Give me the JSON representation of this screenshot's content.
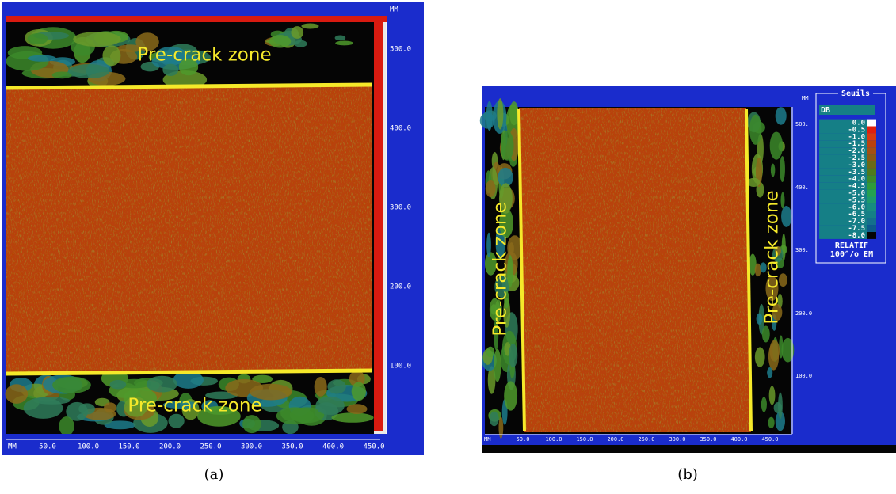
{
  "panel_a": {
    "y_axis_unit": "MM",
    "y_axis_labels": [
      "500.0",
      "400.0",
      "300.0",
      "200.0",
      "100.0"
    ],
    "x_axis_unit": "MM",
    "x_axis_labels": [
      "50.0",
      "100.0",
      "150.0",
      "200.0",
      "250.0",
      "300.0",
      "350.0",
      "400.0",
      "450.0"
    ],
    "annotations": [
      "Pre-crack zone",
      "Pre-crack zone"
    ],
    "caption": "(a)"
  },
  "panel_b": {
    "y_axis_unit": "MM",
    "y_axis_labels": [
      "500.",
      "400.",
      "300.",
      "200.0",
      "100.0"
    ],
    "x_axis_unit": "MM",
    "x_axis_labels": [
      "50.0",
      "100.0",
      "150.0",
      "200.0",
      "250.0",
      "300.0",
      "350.0",
      "400.0",
      "450.0"
    ],
    "annotations": [
      "Pre-crack zone",
      "Pre-crack zone"
    ],
    "legend": {
      "title": "Seuils",
      "unit": "DB",
      "levels": [
        "0.0",
        "-0.5",
        "-1.0",
        "-1.5",
        "-2.0",
        "-2.5",
        "-3.0",
        "-3.5",
        "-4.0",
        "-4.5",
        "-5.0",
        "-5.5",
        "-6.0",
        "-6.5",
        "-7.0",
        "-7.5",
        "-8.0"
      ],
      "mode": "RELATIF",
      "reference": "100°/o EM"
    },
    "caption": "(b)"
  }
}
